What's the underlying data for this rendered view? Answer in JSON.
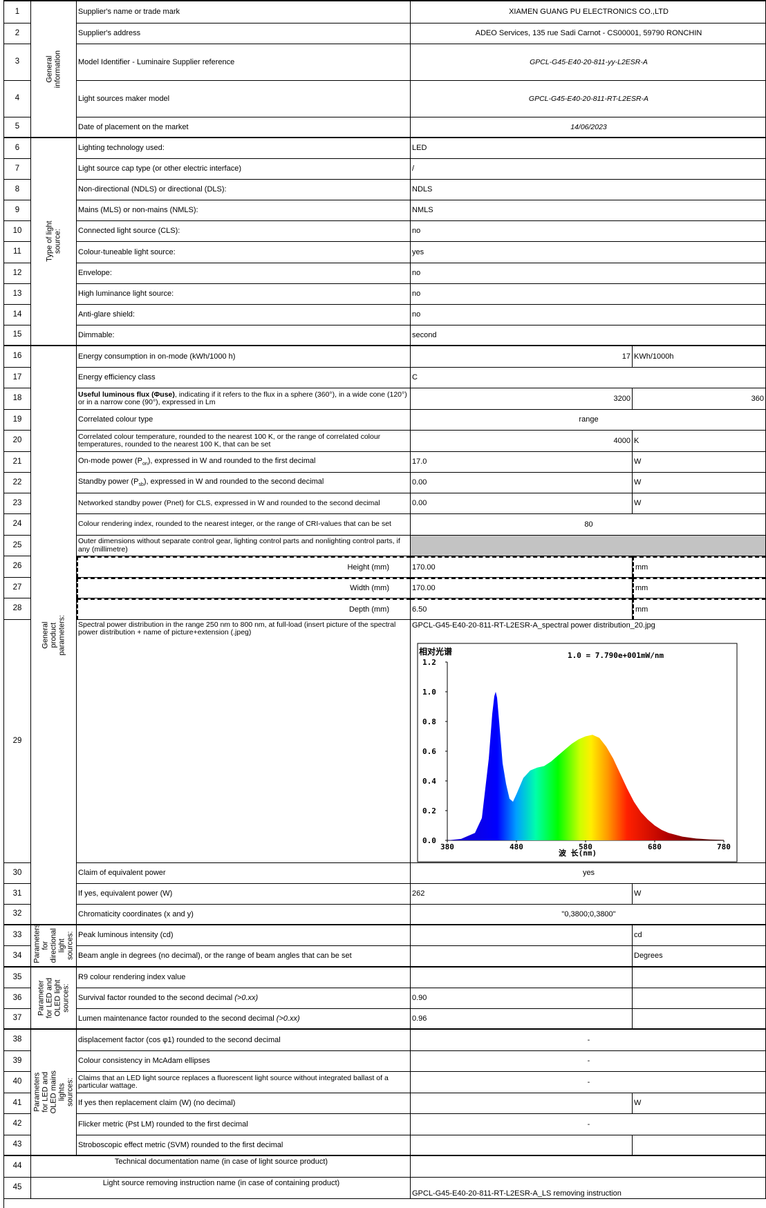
{
  "groups": {
    "general_information": "General information",
    "type_of_light_source": "Type of light source:",
    "general_product_parameters": "General product parameters:",
    "directional": "Parameters for directional light sources:",
    "led_oled": "Parameter for LED and OLED light sources:",
    "led_oled_mains": "Parameters for LED and OLED mains lights sources:"
  },
  "rows": [
    {
      "n": "1",
      "label": "Supplier's name or trade mark",
      "value": "XIAMEN GUANG PU ELECTRONICS CO.,LTD"
    },
    {
      "n": "2",
      "label": "Supplier's address",
      "value": "ADEO Services, 135 rue Sadi Carnot - CS00001, 59790 RONCHIN"
    },
    {
      "n": "3",
      "label": "Model Identifier - Luminaire Supplier reference",
      "value": "GPCL-G45-E40-20-811-yy-L2ESR-A"
    },
    {
      "n": "4",
      "label": "Light sources maker model",
      "value": "GPCL-G45-E40-20-811-RT-L2ESR-A"
    },
    {
      "n": "5",
      "label": "Date of placement on the market",
      "value": "14/06/2023"
    },
    {
      "n": "6",
      "label": "Lighting technology used:",
      "value": "LED"
    },
    {
      "n": "7",
      "label": "Light source cap type (or other electric interface)",
      "value": "/"
    },
    {
      "n": "8",
      "label": "Non-directional (NDLS) or directional (DLS):",
      "value": "NDLS"
    },
    {
      "n": "9",
      "label": "Mains (MLS) or non-mains (NMLS):",
      "value": "NMLS"
    },
    {
      "n": "10",
      "label": "Connected light source (CLS):",
      "value": "no"
    },
    {
      "n": "11",
      "label": "Colour-tuneable light source:",
      "value": "yes"
    },
    {
      "n": "12",
      "label": "Envelope:",
      "value": "no"
    },
    {
      "n": "13",
      "label": "High luminance light source:",
      "value": "no"
    },
    {
      "n": "14",
      "label": "Anti-glare shield:",
      "value": "no"
    },
    {
      "n": "15",
      "label": "Dimmable:",
      "value": "second"
    },
    {
      "n": "16",
      "label": "Energy consumption in on-mode (kWh/1000 h)",
      "value": "17",
      "unit": "KWh/1000h"
    },
    {
      "n": "17",
      "label": "Energy efficiency class",
      "value": "C"
    },
    {
      "n": "18",
      "label_bold": "Useful luminous flux (Φuse)",
      "label": ", indicating if it refers to the flux in a sphere (360°), in a wide cone (120°) or in a narrow cone (90°), expressed in Lm",
      "value": "3200",
      "unit": "360"
    },
    {
      "n": "19",
      "label": "Correlated colour type",
      "value": "range"
    },
    {
      "n": "20",
      "label": "Correlated colour temperature, rounded to the nearest 100 K, or the range of correlated colour temperatures, rounded to the nearest 100 K, that can be set",
      "value": "4000",
      "unit": "K"
    },
    {
      "n": "21",
      "label_a": "On-mode power (P",
      "label_sub": "on",
      "label_b": "), expressed in W and rounded to the first decimal",
      "value": "17.0",
      "unit": "W"
    },
    {
      "n": "22",
      "label_a": "Standby power (P",
      "label_sub": "sb",
      "label_b": "), expressed in W and rounded to the second decimal",
      "value": "0.00",
      "unit": "W"
    },
    {
      "n": "23",
      "label": "Networked standby power (Pnet) for CLS, expressed in W and rounded to the second decimal",
      "value": "0.00",
      "unit": "W"
    },
    {
      "n": "24",
      "label": "Colour rendering index, rounded to the nearest integer, or the range of CRI-values that can be set",
      "value": "80"
    },
    {
      "n": "25",
      "label": "Outer dimensions without separate control gear, lighting control parts and nonlighting control parts, if any (millimetre)",
      "value": ""
    },
    {
      "n": "26",
      "label": "Height (mm)",
      "value": "170.00",
      "unit": "mm"
    },
    {
      "n": "27",
      "label": "Width (mm)",
      "value": "170.00",
      "unit": "mm"
    },
    {
      "n": "28",
      "label": "Depth (mm)",
      "value": "6.50",
      "unit": "mm"
    },
    {
      "n": "29",
      "label": "Spectral power distribution in the range 250 nm to 800 nm, at full-load (insert picture of the spectral power distribution + name of picture+extension (.jpeg)",
      "value": "GPCL-G45-E40-20-811-RT-L2ESR-A_spectral power distribution_20.jpg"
    },
    {
      "n": "30",
      "label": "Claim of equivalent power",
      "value": "yes"
    },
    {
      "n": "31",
      "label": "If yes, equivalent power (W)",
      "value": "262",
      "unit": "W"
    },
    {
      "n": "32",
      "label": "Chromaticity coordinates (x and y)",
      "value": "\"0,3800;0,3800\""
    },
    {
      "n": "33",
      "label": "Peak luminous intensity (cd)",
      "value": "",
      "unit": "cd"
    },
    {
      "n": "34",
      "label": "Beam angle in degrees (no decimal), or the range of beam angles that can be set",
      "value": "",
      "unit": "Degrees"
    },
    {
      "n": "35",
      "label": "R9 colour rendering index value",
      "value": ""
    },
    {
      "n": "36",
      "label": "Survival factor rounded to the second decimal ",
      "label_i": "(>0.xx)",
      "value": "0.90"
    },
    {
      "n": "37",
      "label": "Lumen maintenance factor rounded to the second decimal ",
      "label_i": "(>0.xx)",
      "value": "0.96"
    },
    {
      "n": "38",
      "label": "displacement factor (cos φ1) rounded to the second decimal",
      "value": "-"
    },
    {
      "n": "39",
      "label": "Colour consistency in McAdam ellipses",
      "value": "-"
    },
    {
      "n": "40",
      "label": "Claims that an LED light source replaces a fluorescent light source without integrated ballast of a particular wattage.",
      "value": "-"
    },
    {
      "n": "41",
      "label": "If yes then replacement claim (W) (no decimal)",
      "value": "",
      "unit": "W"
    },
    {
      "n": "42",
      "label": "Flicker metric (Pst LM) rounded to the first decimal",
      "value": "-"
    },
    {
      "n": "43",
      "label": "Stroboscopic effect metric (SVM) rounded to the first decimal",
      "value": ""
    },
    {
      "n": "44",
      "label": "Technical documentation name (in case of light source product)",
      "value": ""
    },
    {
      "n": "45",
      "label": "Light source removing instruction name (in case of containing product)",
      "value": "GPCL-G45-E40-20-811-RT-L2ESR-A_LS removing instruction"
    }
  ],
  "chart_data": {
    "type": "line",
    "title": "相对光谱",
    "annotation": "1.0 = 7.790e+001mW/nm",
    "xlabel": "波 长(nm)",
    "ylabel": "",
    "xlim": [
      380,
      780
    ],
    "ylim": [
      0,
      1.2
    ],
    "xticks": [
      "380",
      "480",
      "580",
      "680",
      "780"
    ],
    "yticks": [
      "0.0",
      "0.2",
      "0.4",
      "0.6",
      "0.8",
      "1.0",
      "1.2"
    ],
    "colors": {
      "blue": "#0000ff",
      "cyan": "#00e0ff",
      "green": "#00ff00",
      "yellow": "#ffee00",
      "orange": "#ff8800",
      "red": "#ff0000",
      "darkred": "#5a0000"
    },
    "x": [
      380,
      400,
      420,
      430,
      440,
      445,
      448,
      450,
      452,
      455,
      460,
      465,
      470,
      475,
      480,
      490,
      500,
      510,
      520,
      530,
      540,
      550,
      560,
      570,
      580,
      590,
      600,
      610,
      620,
      630,
      640,
      650,
      660,
      670,
      680,
      690,
      700,
      720,
      740,
      760,
      780
    ],
    "y": [
      0.0,
      0.01,
      0.05,
      0.15,
      0.55,
      0.85,
      0.97,
      1.0,
      0.96,
      0.8,
      0.52,
      0.38,
      0.28,
      0.26,
      0.31,
      0.42,
      0.47,
      0.49,
      0.5,
      0.53,
      0.57,
      0.61,
      0.65,
      0.68,
      0.7,
      0.71,
      0.69,
      0.63,
      0.55,
      0.45,
      0.35,
      0.26,
      0.19,
      0.14,
      0.1,
      0.07,
      0.05,
      0.025,
      0.012,
      0.006,
      0.003
    ]
  }
}
